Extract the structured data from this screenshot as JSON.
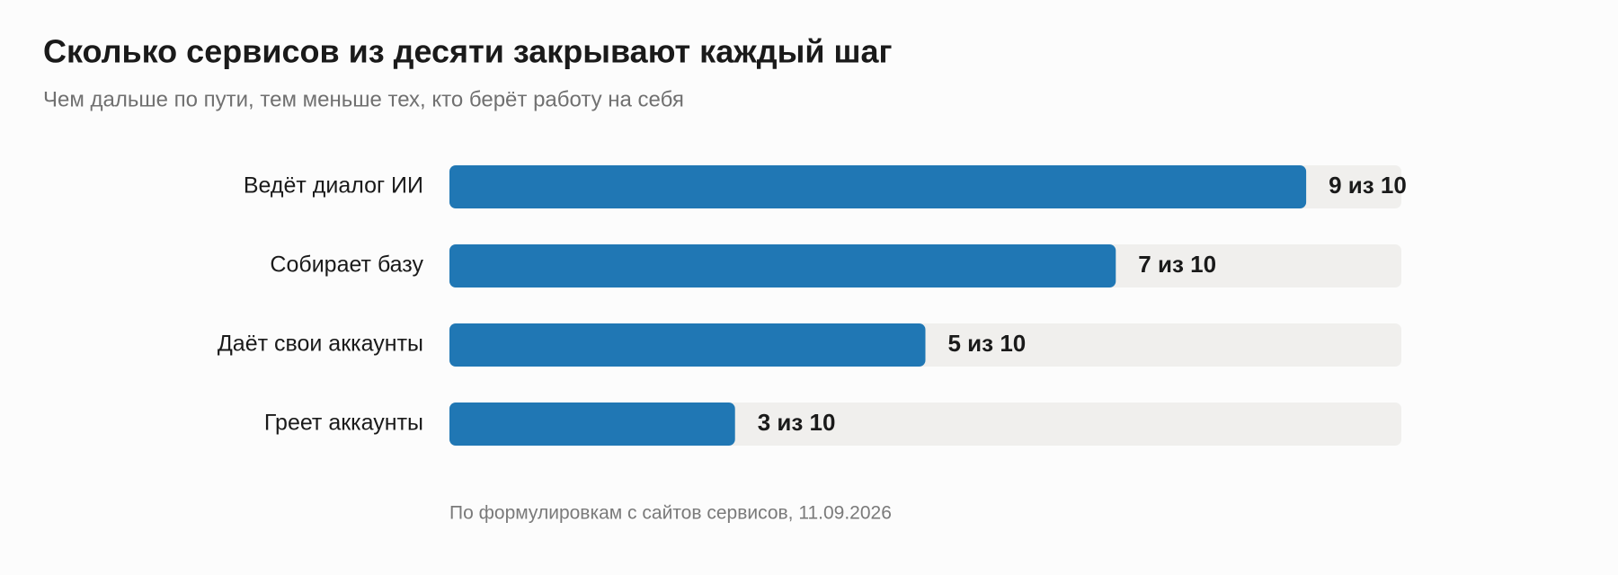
{
  "chart_data": {
    "type": "bar",
    "orientation": "horizontal",
    "title": "Сколько сервисов из десяти закрывают каждый шаг",
    "subtitle": "Чем дальше по пути, тем меньше тех, кто берёт работу на себя",
    "categories": [
      "Ведёт диалог ИИ",
      "Собирает базу",
      "Даёт свои аккаунты",
      "Греет аккаунты"
    ],
    "values": [
      9,
      7,
      5,
      3
    ],
    "value_labels": [
      "9 из 10",
      "7 из 10",
      "5 из 10",
      "3 из 10"
    ],
    "xlim": [
      0,
      10
    ],
    "color": "#2077b4",
    "track_color": "#f0efed",
    "note": "По формулировкам с сайтов сервисов, 11.09.2026"
  }
}
